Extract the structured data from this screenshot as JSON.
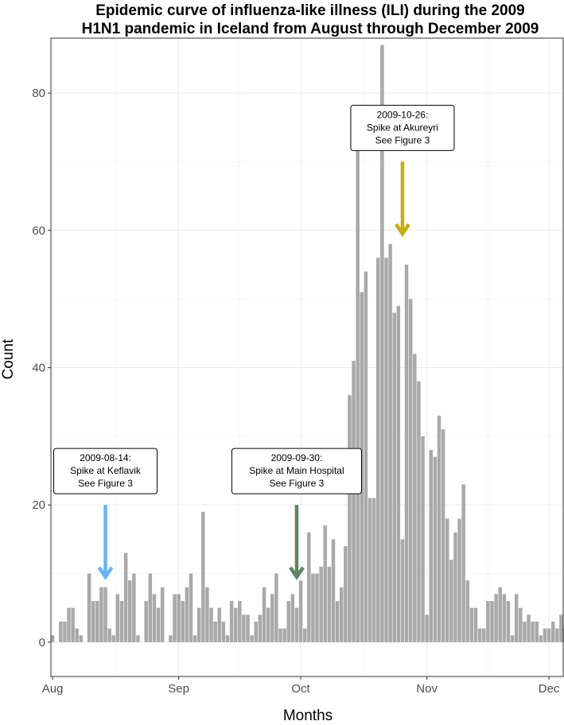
{
  "chart_data": {
    "type": "bar",
    "title_lines": [
      "Epidemic curve of influenza-like illness (ILI) during the 2009",
      "H1N1 pandemic in Iceland from August through December 2009"
    ],
    "xlabel": "Months",
    "ylabel": "Count",
    "x_start": "2009-08-01",
    "x_range": [
      "2009-08-01",
      "2009-12-05"
    ],
    "ylim": [
      -5,
      88
    ],
    "y_ticks": [
      0,
      20,
      40,
      60,
      80
    ],
    "x_ticks": [
      {
        "date": "2009-08-01",
        "label": "Aug"
      },
      {
        "date": "2009-09-01",
        "label": "Sep"
      },
      {
        "date": "2009-10-01",
        "label": "Oct"
      },
      {
        "date": "2009-11-01",
        "label": "Nov"
      },
      {
        "date": "2009-12-01",
        "label": "Dec"
      }
    ],
    "grid": true,
    "bar_color": "#a9a9a9",
    "values": [
      1,
      0,
      3,
      3,
      5,
      5,
      2,
      1,
      0,
      10,
      6,
      6,
      8,
      8,
      2,
      1,
      7,
      6,
      13,
      9,
      10,
      1,
      0,
      6,
      10,
      7,
      5,
      8,
      0,
      1,
      7,
      7,
      6,
      8,
      10,
      1,
      5,
      19,
      8,
      5,
      3,
      5,
      3,
      1,
      6,
      5,
      6,
      4,
      4,
      1,
      3,
      4,
      8,
      5,
      7,
      10,
      2,
      2,
      6,
      7,
      5,
      9,
      2,
      16,
      10,
      10,
      11,
      17,
      11,
      15,
      6,
      8,
      14,
      36,
      41,
      75,
      51,
      54,
      21,
      21,
      56,
      87,
      56,
      58,
      48,
      49,
      15,
      55,
      50,
      42,
      38,
      30,
      4,
      28,
      27,
      33,
      31,
      18,
      12,
      16,
      18,
      23,
      9,
      5,
      5,
      2,
      2,
      6,
      6,
      7,
      8,
      7,
      6,
      1,
      7,
      5,
      3,
      4,
      3,
      3,
      1,
      2,
      2,
      3,
      2,
      4,
      2,
      0,
      2,
      3
    ],
    "annotations": [
      {
        "date": "2009-08-14",
        "lines": [
          "2009-08-14:",
          "Spike at Keflavik",
          "See Figure 3"
        ],
        "arrow_color": "#64b5f6",
        "arrow_from": 20,
        "arrow_to": 9.5
      },
      {
        "date": "2009-09-30",
        "lines": [
          "2009-09-30:",
          "Spike at Main Hospital",
          "See Figure 3"
        ],
        "arrow_color": "#5f8461",
        "arrow_from": 20,
        "arrow_to": 9.5
      },
      {
        "date": "2009-10-26",
        "lines": [
          "2009-10-26:",
          "Spike at Akureyri",
          "See Figure 3"
        ],
        "arrow_color": "#c9ad0a",
        "arrow_from": 70,
        "arrow_to": 59.5
      }
    ]
  }
}
